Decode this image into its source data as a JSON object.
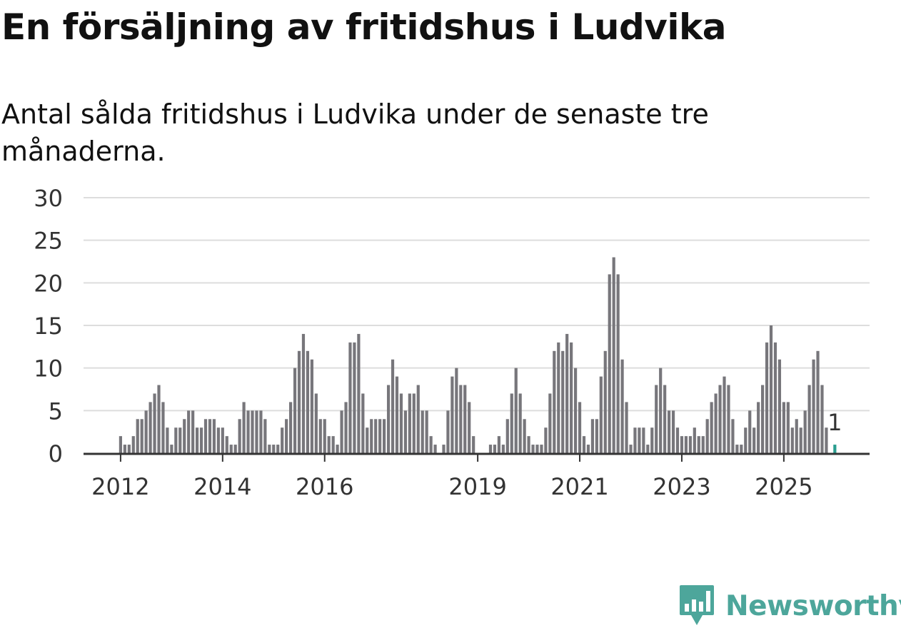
{
  "title": "En försäljning av fritidshus i Ludvika",
  "subtitle": "Antal sålda fritidshus i Ludvika under de senaste tre månaderna.",
  "brand": {
    "name": "Newsworthy",
    "color": "#4da69b"
  },
  "colors": {
    "bar": "#77767b",
    "highlight": "#2a9d8f",
    "grid": "#dddddd",
    "axis": "#333333"
  },
  "chart_data": {
    "type": "bar",
    "title": "En försäljning av fritidshus i Ludvika",
    "subtitle": "Antal sålda fritidshus i Ludvika under de senaste tre månaderna.",
    "xlabel": "",
    "ylabel": "",
    "ylim": [
      0,
      30
    ],
    "y_ticks": [
      0,
      5,
      10,
      15,
      20,
      25,
      30
    ],
    "x_tick_labels": [
      "2012",
      "2014",
      "2016",
      "2019",
      "2021",
      "2023",
      "2025"
    ],
    "grid": true,
    "legend": "none",
    "highlight_label": "1",
    "values": [
      2,
      1,
      1,
      2,
      4,
      4,
      5,
      6,
      7,
      8,
      6,
      3,
      1,
      3,
      3,
      4,
      5,
      5,
      3,
      3,
      4,
      4,
      4,
      3,
      3,
      2,
      1,
      1,
      4,
      6,
      5,
      5,
      5,
      5,
      4,
      1,
      1,
      1,
      3,
      4,
      6,
      10,
      12,
      14,
      12,
      11,
      7,
      4,
      4,
      2,
      2,
      1,
      5,
      6,
      13,
      13,
      14,
      7,
      3,
      4,
      4,
      4,
      4,
      8,
      11,
      9,
      7,
      5,
      7,
      7,
      8,
      5,
      5,
      2,
      1,
      0,
      1,
      5,
      9,
      10,
      8,
      8,
      6,
      2,
      0,
      0,
      0,
      1,
      1,
      2,
      1,
      4,
      7,
      10,
      7,
      4,
      2,
      1,
      1,
      1,
      3,
      7,
      12,
      13,
      12,
      14,
      13,
      10,
      6,
      2,
      1,
      4,
      4,
      9,
      12,
      21,
      23,
      21,
      11,
      6,
      1,
      3,
      3,
      3,
      1,
      3,
      8,
      10,
      8,
      5,
      5,
      3,
      2,
      2,
      2,
      3,
      2,
      2,
      4,
      6,
      7,
      8,
      9,
      8,
      4,
      1,
      1,
      3,
      5,
      3,
      6,
      8,
      13,
      15,
      13,
      11,
      6,
      6,
      3,
      4,
      3,
      5,
      8,
      11,
      12,
      8,
      3,
      0,
      1
    ]
  }
}
